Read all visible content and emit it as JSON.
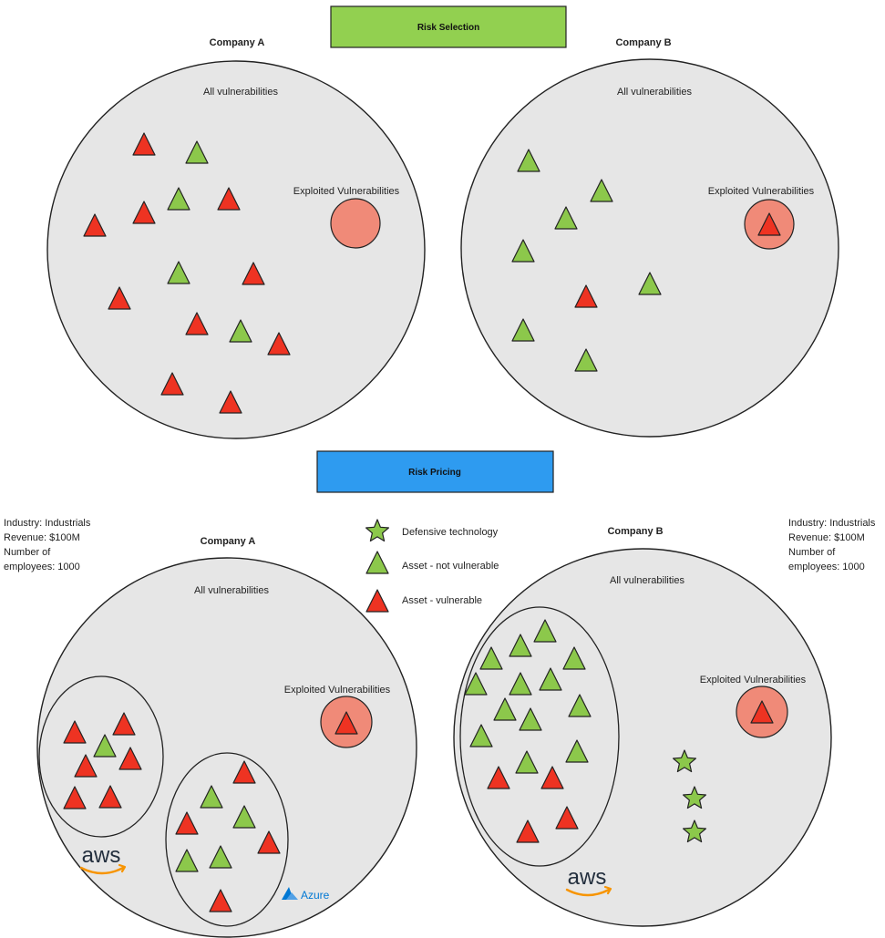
{
  "header": {
    "risk_selection": "Risk Selection",
    "risk_pricing": "Risk Pricing"
  },
  "colors": {
    "selection_bar": "#92d050",
    "pricing_bar": "#2e9bf0",
    "circle_fill": "#e6e6e6",
    "exploited_fill": "#f08a78",
    "vulnerable": "#ee3322",
    "not_vulnerable": "#8cc84b",
    "defensive": "#8cc84b"
  },
  "top": {
    "company_a": {
      "title": "Company A",
      "all_label": "All vulnerabilities",
      "exploited_label": "Exploited Vulnerabilities"
    },
    "company_b": {
      "title": "Company B",
      "all_label": "All vulnerabilities",
      "exploited_label": "Exploited Vulnerabilities"
    }
  },
  "bottom": {
    "company_a": {
      "title": "Company A",
      "all_label": "All vulnerabilities",
      "exploited_label": "Exploited Vulnerabilities",
      "info": [
        "Industry: Industrials",
        "Revenue: $100M",
        "Number of",
        "employees: 1000"
      ],
      "aws_label": "aws",
      "azure_label": "Azure"
    },
    "company_b": {
      "title": "Company B",
      "all_label": "All vulnerabilities",
      "exploited_label": "Exploited Vulnerabilities",
      "info": [
        "Industry: Industrials",
        "Revenue: $100M",
        "Number of",
        "employees: 1000"
      ],
      "aws_label": "aws"
    }
  },
  "legend": {
    "defensive": "Defensive technology",
    "not_vulnerable": "Asset - not vulnerable",
    "vulnerable": "Asset - vulnerable"
  }
}
